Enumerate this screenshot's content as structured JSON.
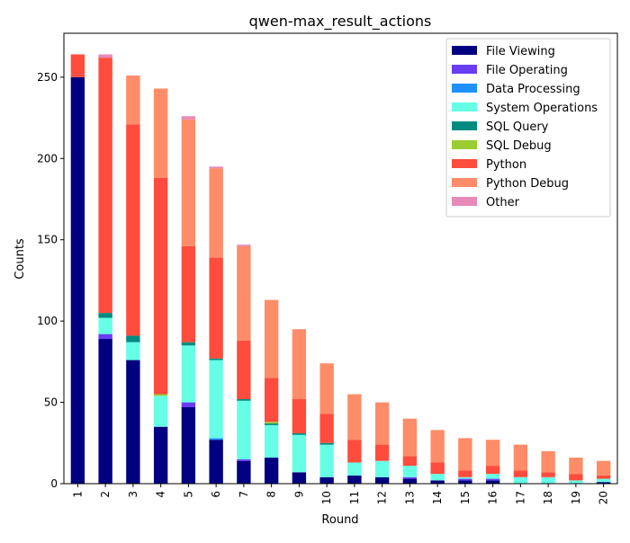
{
  "chart_data": {
    "type": "bar",
    "stacked": true,
    "title": "qwen-max_result_actions",
    "xlabel": "Round",
    "ylabel": "Counts",
    "ylim": [
      0,
      277
    ],
    "yticks": [
      0,
      50,
      100,
      150,
      200,
      250
    ],
    "legend_position": "upper right",
    "categories": [
      "1",
      "2",
      "3",
      "4",
      "5",
      "6",
      "7",
      "8",
      "9",
      "10",
      "11",
      "12",
      "13",
      "14",
      "15",
      "16",
      "17",
      "18",
      "19",
      "20"
    ],
    "series": [
      {
        "name": "File Viewing",
        "color": "#000080",
        "values": [
          250,
          89,
          76,
          35,
          47,
          27,
          14,
          16,
          7,
          4,
          5,
          4,
          3,
          2,
          2,
          2,
          0,
          0,
          0,
          1
        ]
      },
      {
        "name": "File Operating",
        "color": "#6a3df5",
        "values": [
          0,
          3,
          0,
          0,
          3,
          0,
          1,
          0,
          0,
          0,
          0,
          0,
          1,
          0,
          1,
          1,
          0,
          0,
          0,
          0
        ]
      },
      {
        "name": "Data Processing",
        "color": "#1e90ff",
        "values": [
          0,
          0,
          0,
          0,
          0,
          1,
          0,
          0,
          0,
          0,
          0,
          0,
          0,
          0,
          0,
          0,
          0,
          0,
          0,
          0
        ]
      },
      {
        "name": "System Operations",
        "color": "#66ffe6",
        "values": [
          0,
          10,
          11,
          19,
          35,
          48,
          36,
          20,
          23,
          20,
          8,
          10,
          7,
          4,
          1,
          3,
          4,
          4,
          2,
          2
        ]
      },
      {
        "name": "SQL Query",
        "color": "#008b80",
        "values": [
          0,
          3,
          4,
          0,
          2,
          1,
          1,
          1,
          1,
          1,
          0,
          0,
          0,
          0,
          0,
          0,
          0,
          0,
          0,
          0
        ]
      },
      {
        "name": "SQL Debug",
        "color": "#9acd32",
        "values": [
          0,
          0,
          0,
          1,
          0,
          0,
          0,
          1,
          0,
          0,
          0,
          0,
          0,
          0,
          0,
          0,
          0,
          0,
          0,
          0
        ]
      },
      {
        "name": "Python",
        "color": "#ff4c3c",
        "values": [
          14,
          157,
          130,
          133,
          59,
          62,
          36,
          27,
          21,
          18,
          14,
          10,
          6,
          7,
          4,
          5,
          4,
          3,
          4,
          2
        ]
      },
      {
        "name": "Python Debug",
        "color": "#ff8c69",
        "values": [
          0,
          0,
          30,
          55,
          78,
          55,
          58,
          48,
          43,
          31,
          28,
          26,
          23,
          20,
          20,
          16,
          16,
          13,
          10,
          9
        ]
      },
      {
        "name": "Other",
        "color": "#e68ab8",
        "values": [
          0,
          2,
          0,
          0,
          2,
          1,
          1,
          0,
          0,
          0,
          0,
          0,
          0,
          0,
          0,
          0,
          0,
          0,
          0,
          0
        ]
      }
    ]
  }
}
